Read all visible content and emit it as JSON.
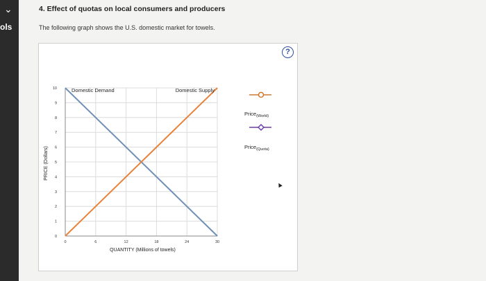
{
  "sidebar": {
    "toggle_icon": "chevron-down-icon",
    "tools_label": "ols"
  },
  "question": {
    "title": "4. Effect of quotas on local consumers and producers",
    "text": "The following graph shows the U.S. domestic market for towels."
  },
  "help_label": "?",
  "legend": {
    "world": {
      "main": "Price",
      "sub": "(World)",
      "color": "#d07a2e"
    },
    "quota": {
      "main": "Price",
      "sub": "(Quota)",
      "color": "#6a3fa6"
    }
  },
  "chart_data": {
    "type": "line",
    "xlabel": "QUANTITY (Millions of towels)",
    "ylabel": "PRICE (Dollars)",
    "xlim": [
      0,
      30
    ],
    "ylim": [
      0,
      10
    ],
    "xticks": [
      0,
      6,
      12,
      18,
      24,
      30
    ],
    "yticks": [
      0,
      1,
      2,
      3,
      4,
      5,
      6,
      7,
      8,
      9,
      10
    ],
    "grid": true,
    "series": [
      {
        "name": "Domestic Demand",
        "x": [
          0,
          30
        ],
        "y": [
          10,
          0
        ],
        "color": "#6f8fb5"
      },
      {
        "name": "Domestic Supply",
        "x": [
          0,
          30
        ],
        "y": [
          0,
          10
        ],
        "color": "#e8823a"
      }
    ]
  }
}
